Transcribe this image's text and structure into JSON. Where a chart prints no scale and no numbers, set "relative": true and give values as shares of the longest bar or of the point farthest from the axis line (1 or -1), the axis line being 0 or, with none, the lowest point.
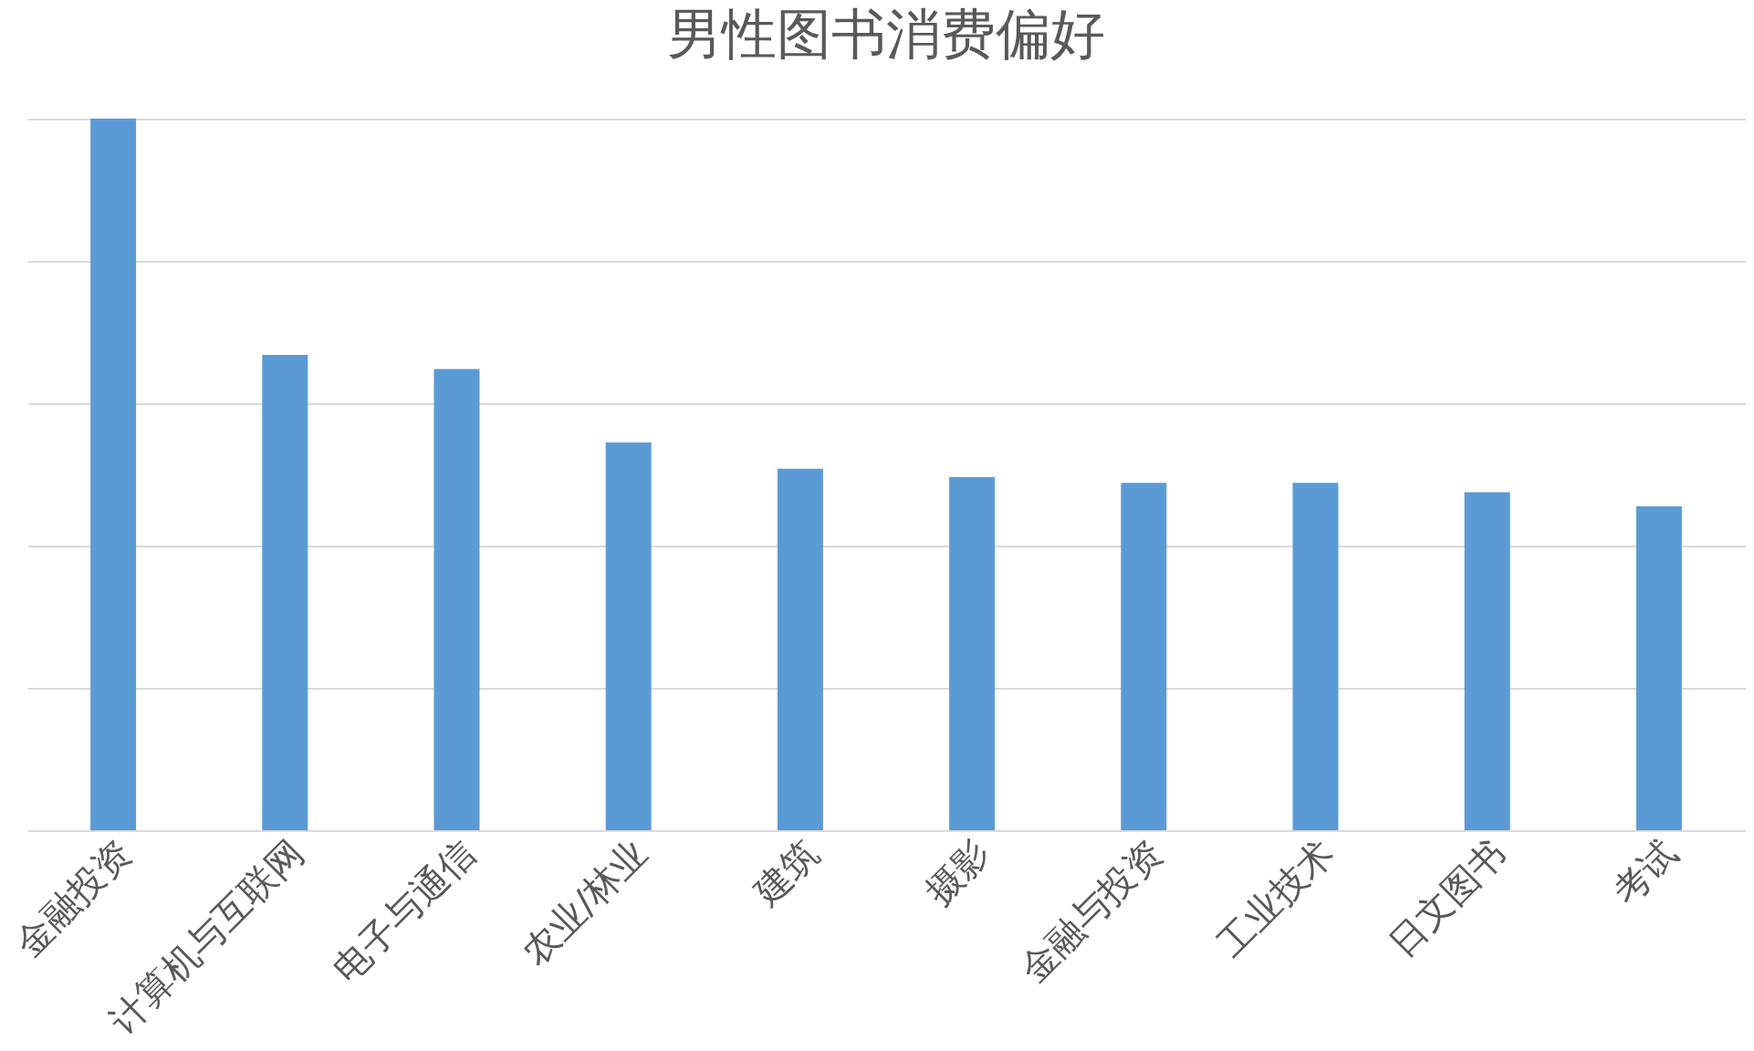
{
  "chart_data": {
    "type": "bar",
    "title": "男性图书消费偏好",
    "relative": true,
    "grid": "y",
    "tick_labels": "x",
    "categories": [
      "金融投资",
      "计算机与互联网",
      "电子与通信",
      "农业/林业",
      "建筑",
      "摄影",
      "金融与投资",
      "工业技术",
      "日文图书",
      "考试"
    ],
    "values": [
      1,
      0.668,
      0.648,
      0.545,
      0.508,
      0.496,
      0.488,
      0.488,
      0.475,
      0.455
    ],
    "color": "#5b9bd5"
  }
}
